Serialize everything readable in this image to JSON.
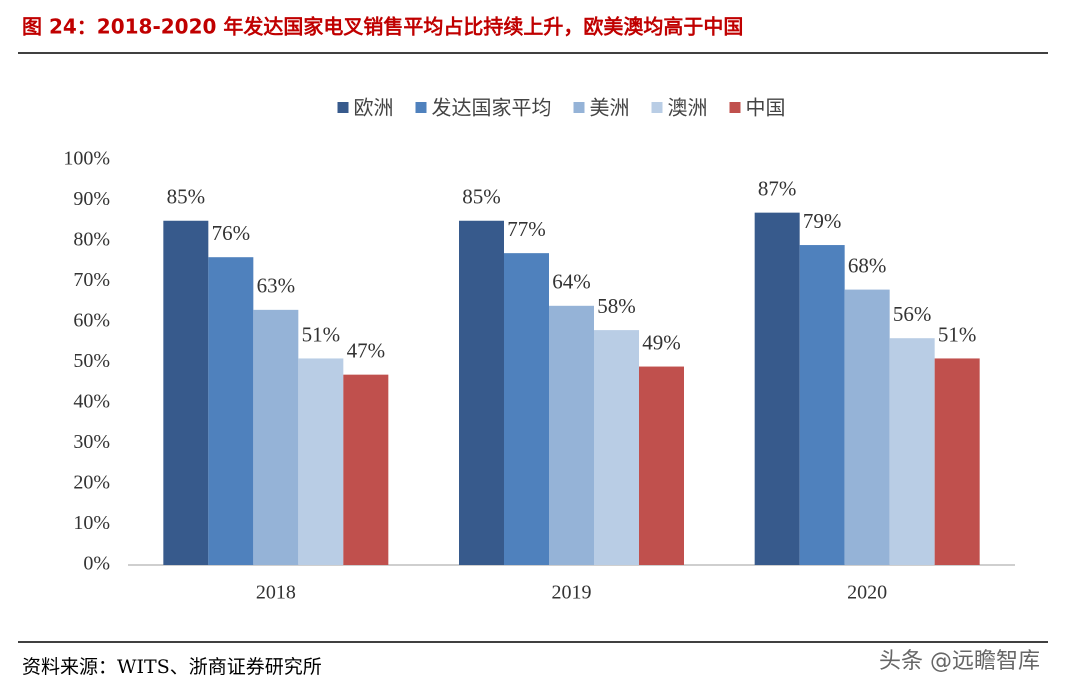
{
  "chart_data": {
    "type": "bar",
    "title": "图 24：2018-2020 年发达国家电叉销售平均占比持续上升，欧美澳均高于中国",
    "categories": [
      "2018",
      "2019",
      "2020"
    ],
    "series": [
      {
        "name": "欧洲",
        "color": "#375a8c",
        "values": [
          85,
          85,
          87
        ],
        "value_labels": [
          "85%",
          "85%",
          "87%"
        ]
      },
      {
        "name": "发达国家平均",
        "color": "#4f81bd",
        "values": [
          76,
          77,
          79
        ],
        "value_labels": [
          "76%",
          "77%",
          "79%"
        ]
      },
      {
        "name": "美洲",
        "color": "#95b3d7",
        "values": [
          63,
          64,
          68
        ],
        "value_labels": [
          "63%",
          "64%",
          "68%"
        ]
      },
      {
        "name": "澳洲",
        "color": "#b9cde5",
        "values": [
          51,
          58,
          56
        ],
        "value_labels": [
          "51%",
          "58%",
          "56%"
        ]
      },
      {
        "name": "中国",
        "color": "#c0504d",
        "values": [
          47,
          49,
          51
        ],
        "value_labels": [
          "47%",
          "49%",
          "51%"
        ]
      }
    ],
    "ylim": [
      0,
      100
    ],
    "yticks": [
      {
        "value": 0,
        "label": "0%"
      },
      {
        "value": 10,
        "label": "10%"
      },
      {
        "value": 20,
        "label": "20%"
      },
      {
        "value": 30,
        "label": "30%"
      },
      {
        "value": 40,
        "label": "40%"
      },
      {
        "value": 50,
        "label": "50%"
      },
      {
        "value": 60,
        "label": "60%"
      },
      {
        "value": 70,
        "label": "70%"
      },
      {
        "value": 80,
        "label": "80%"
      },
      {
        "value": 90,
        "label": "90%"
      },
      {
        "value": 100,
        "label": "100%"
      }
    ],
    "legend": "top",
    "source": "资料来源：WITS、浙商证券研究所",
    "watermark": "头条 @远瞻智库"
  }
}
